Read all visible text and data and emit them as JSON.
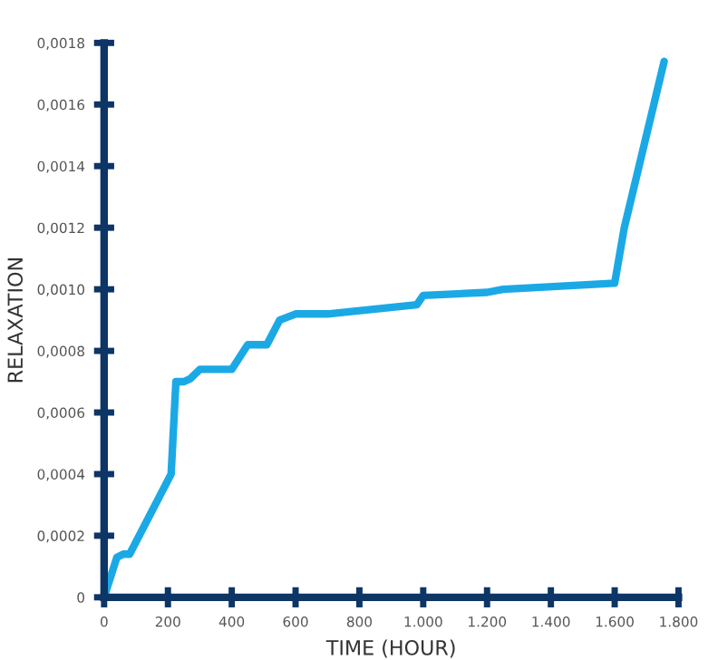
{
  "chart_data": {
    "type": "line",
    "xlabel": "TIME (HOUR)",
    "ylabel": "RELAXATION",
    "xlim": [
      0,
      1800
    ],
    "ylim": [
      0,
      0.0018
    ],
    "xticks": [
      0,
      200,
      400,
      600,
      800,
      {
        "value": 1000,
        "label": "1.000"
      },
      {
        "value": 1200,
        "label": "1.200"
      },
      {
        "value": 1400,
        "label": "1.400"
      },
      {
        "value": 1600,
        "label": "1.600"
      },
      {
        "value": 1800,
        "label": "1.800"
      }
    ],
    "yticks": [
      0,
      {
        "value": 0.0002,
        "label": "0,0002"
      },
      {
        "value": 0.0004,
        "label": "0,0004"
      },
      {
        "value": 0.0006,
        "label": "0,0006"
      },
      {
        "value": 0.0008,
        "label": "0,0008"
      },
      {
        "value": 0.001,
        "label": "0,0010"
      },
      {
        "value": 0.0012,
        "label": "0,0012"
      },
      {
        "value": 0.0014,
        "label": "0,0014"
      },
      {
        "value": 0.0016,
        "label": "0,0016"
      },
      {
        "value": 0.0018,
        "label": "0,0018"
      }
    ],
    "x": [
      0,
      40,
      60,
      80,
      210,
      225,
      250,
      270,
      300,
      400,
      450,
      510,
      550,
      600,
      700,
      980,
      1000,
      1200,
      1250,
      1600,
      1630,
      1755
    ],
    "series": [
      {
        "color": "#1ba9e6",
        "values": [
          0,
          0.00013,
          0.00014,
          0.00014,
          0.0004,
          0.0007,
          0.0007,
          0.00071,
          0.00074,
          0.00074,
          0.00082,
          0.00082,
          0.0009,
          0.00092,
          0.00092,
          0.00095,
          0.00098,
          0.00099,
          0.001,
          0.00102,
          0.0012,
          0.00174
        ]
      }
    ],
    "grid": false,
    "legend": false,
    "marker": "none",
    "line_style": "solid"
  }
}
